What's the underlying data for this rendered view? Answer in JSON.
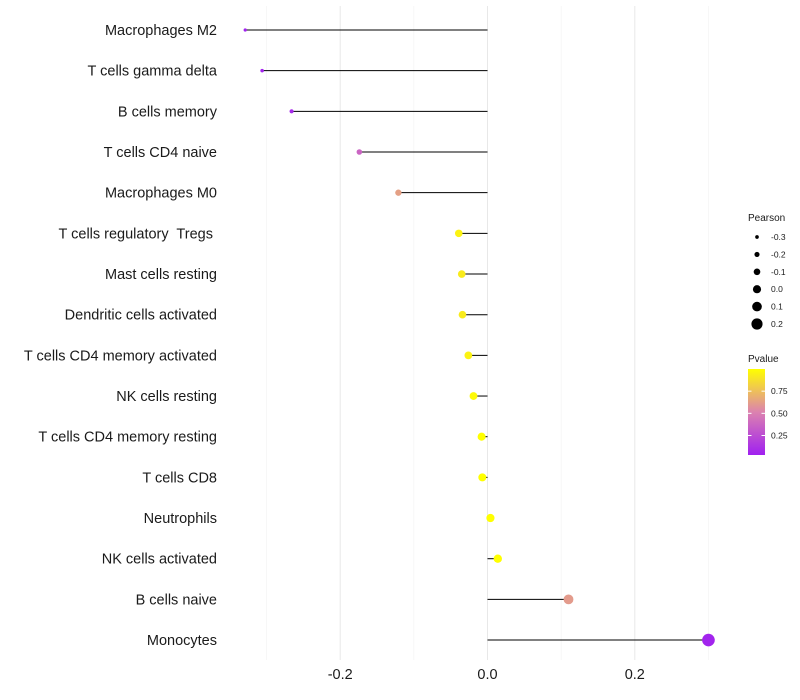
{
  "chart_data": {
    "type": "lollipop",
    "title": "",
    "xlabel": "",
    "ylabel": "",
    "xlim": [
      -0.33,
      0.3
    ],
    "x_ticks": [
      -0.2,
      0.0,
      0.2
    ],
    "x_tick_labels": [
      "-0.2",
      "0.0",
      "0.2"
    ],
    "categories": [
      "Macrophages M2",
      "T cells gamma delta",
      "B cells memory",
      "T cells CD4 naive",
      "Macrophages M0",
      "T cells regulatory  Tregs ",
      "Mast cells resting",
      "Dendritic cells activated",
      "T cells CD4 memory activated",
      "NK cells resting",
      "T cells CD4 memory resting",
      "T cells CD8",
      "Neutrophils",
      "NK cells activated",
      "B cells naive",
      "Monocytes"
    ],
    "pearson": [
      -0.329,
      -0.306,
      -0.266,
      -0.174,
      -0.121,
      -0.039,
      -0.035,
      -0.034,
      -0.026,
      -0.019,
      -0.008,
      -0.007,
      0.004,
      0.014,
      0.11,
      0.3
    ],
    "pvalue": [
      0.01,
      0.02,
      0.05,
      0.35,
      0.62,
      0.95,
      0.92,
      0.92,
      0.95,
      0.98,
      1.0,
      1.0,
      1.0,
      1.0,
      0.6,
      0.02
    ],
    "size_legend": {
      "title": "Pearson",
      "labels": [
        "-0.3",
        "-0.2",
        "-0.1",
        "0.0",
        "0.1",
        "0.2"
      ],
      "values": [
        -0.3,
        -0.2,
        -0.1,
        0.0,
        0.1,
        0.2
      ]
    },
    "color_legend": {
      "title": "Pvalue",
      "labels": [
        "0.75",
        "0.50",
        "0.25"
      ],
      "values": [
        0.75,
        0.5,
        0.25
      ],
      "low_color": "#a020f0",
      "high_color": "#ffff00"
    },
    "grid": true,
    "legend_position": "right"
  }
}
